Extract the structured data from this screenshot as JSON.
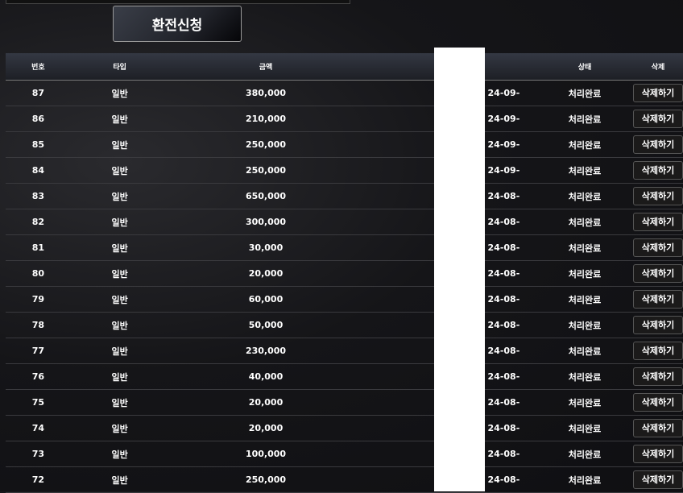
{
  "apply_button": "환전신청",
  "headers": [
    "번호",
    "타입",
    "금액",
    "",
    "상태",
    "삭제"
  ],
  "delete_label": "삭제하기",
  "rows": [
    {
      "no": "87",
      "type": "일반",
      "amount": "380,000",
      "date": "24-09-",
      "status": "처리완료"
    },
    {
      "no": "86",
      "type": "일반",
      "amount": "210,000",
      "date": "24-09-",
      "status": "처리완료"
    },
    {
      "no": "85",
      "type": "일반",
      "amount": "250,000",
      "date": "24-09-",
      "status": "처리완료"
    },
    {
      "no": "84",
      "type": "일반",
      "amount": "250,000",
      "date": "24-09-",
      "status": "처리완료"
    },
    {
      "no": "83",
      "type": "일반",
      "amount": "650,000",
      "date": "24-08-",
      "status": "처리완료"
    },
    {
      "no": "82",
      "type": "일반",
      "amount": "300,000",
      "date": "24-08-",
      "status": "처리완료"
    },
    {
      "no": "81",
      "type": "일반",
      "amount": "30,000",
      "date": "24-08-",
      "status": "처리완료"
    },
    {
      "no": "80",
      "type": "일반",
      "amount": "20,000",
      "date": "24-08-",
      "status": "처리완료"
    },
    {
      "no": "79",
      "type": "일반",
      "amount": "60,000",
      "date": "24-08-",
      "status": "처리완료"
    },
    {
      "no": "78",
      "type": "일반",
      "amount": "50,000",
      "date": "24-08-",
      "status": "처리완료"
    },
    {
      "no": "77",
      "type": "일반",
      "amount": "230,000",
      "date": "24-08-",
      "status": "처리완료"
    },
    {
      "no": "76",
      "type": "일반",
      "amount": "40,000",
      "date": "24-08-",
      "status": "처리완료"
    },
    {
      "no": "75",
      "type": "일반",
      "amount": "20,000",
      "date": "24-08-",
      "status": "처리완료"
    },
    {
      "no": "74",
      "type": "일반",
      "amount": "20,000",
      "date": "24-08-",
      "status": "처리완료"
    },
    {
      "no": "73",
      "type": "일반",
      "amount": "100,000",
      "date": "24-08-",
      "status": "처리완료"
    },
    {
      "no": "72",
      "type": "일반",
      "amount": "250,000",
      "date": "24-08-",
      "status": "처리완료"
    }
  ]
}
